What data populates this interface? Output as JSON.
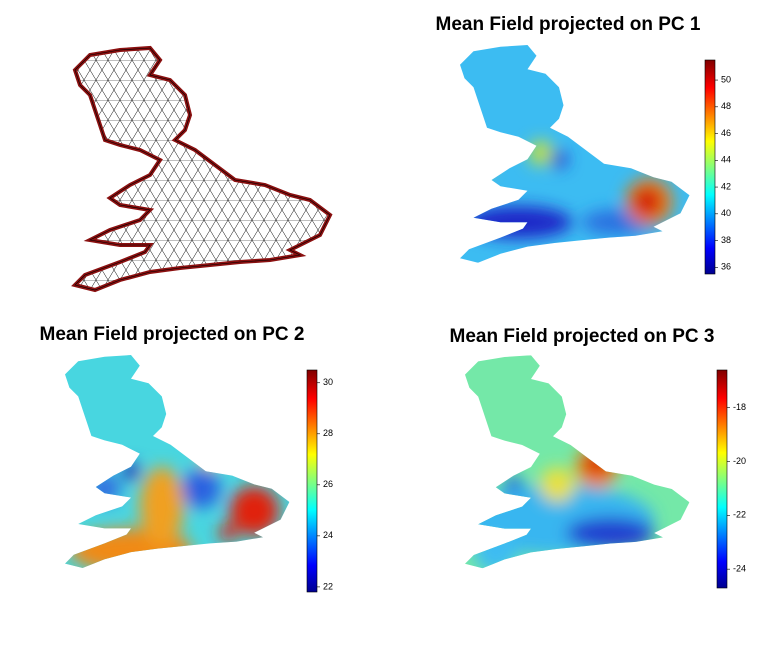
{
  "maps": [
    {
      "title": "Mean Field projected on PC 1",
      "colorbar_range": [
        35.5,
        51.5
      ],
      "colorbar_ticks": [
        36,
        38,
        40,
        42,
        44,
        46,
        48,
        50
      ]
    },
    {
      "title": "Mean Field projected on PC 2",
      "colorbar_range": [
        21.8,
        30.5
      ],
      "colorbar_ticks": [
        22,
        24,
        26,
        28,
        30
      ]
    },
    {
      "title": "Mean Field projected on PC 3",
      "colorbar_range": [
        -24.7,
        -16.6
      ],
      "colorbar_ticks": [
        -24,
        -22,
        -20,
        -18
      ]
    }
  ]
}
